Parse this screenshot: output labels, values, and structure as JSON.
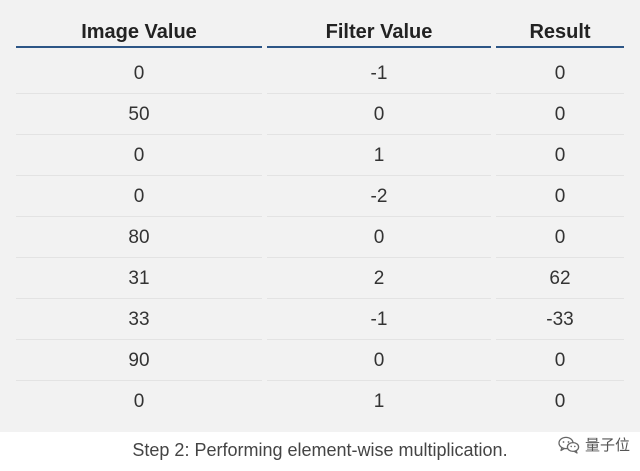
{
  "table": {
    "headers": [
      "Image Value",
      "Filter Value",
      "Result"
    ],
    "rows": [
      [
        "0",
        "-1",
        "0"
      ],
      [
        "50",
        "0",
        "0"
      ],
      [
        "0",
        "1",
        "0"
      ],
      [
        "0",
        "-2",
        "0"
      ],
      [
        "80",
        "0",
        "0"
      ],
      [
        "31",
        "2",
        "62"
      ],
      [
        "33",
        "-1",
        "-33"
      ],
      [
        "90",
        "0",
        "0"
      ],
      [
        "0",
        "1",
        "0"
      ]
    ]
  },
  "caption": "Step 2: Performing element-wise multiplication.",
  "watermark": {
    "icon": "wechat-icon",
    "text": "量子位"
  },
  "colors": {
    "header_rule": "#2d5686",
    "panel_background": "#f2f2f2"
  }
}
